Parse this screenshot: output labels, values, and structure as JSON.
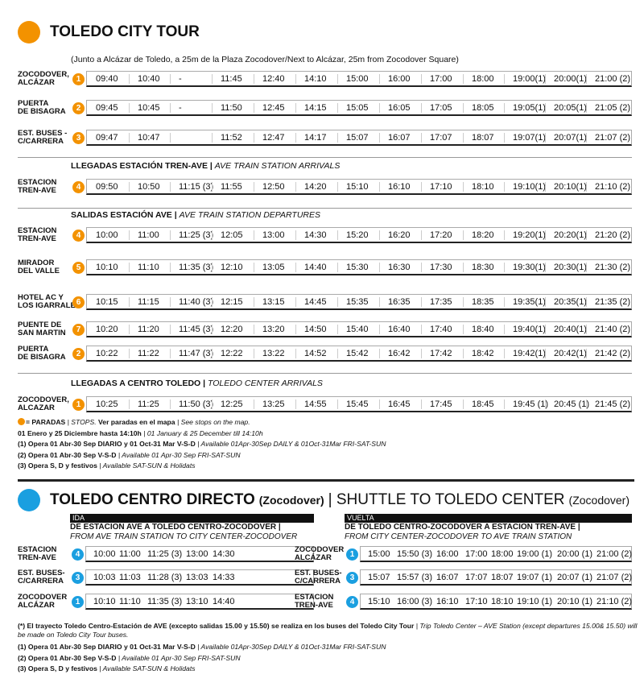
{
  "tour": {
    "title": "TOLEDO CITY TOUR",
    "subtitle": "(Junto a Alcázar de Toledo, a 25m de la Plaza Zocodover/Next to Alcázar, 25m from Zocodover Square)",
    "groups": [
      {
        "rows": [
          {
            "stop": [
              "ZOCODOVER,",
              "ALCÁZAR"
            ],
            "num": 1,
            "times": [
              "09:40",
              "10:40",
              "-",
              "11:45",
              "12:40",
              "14:10",
              "15:00",
              "16:00",
              "17:00",
              "18:00",
              "19:00(1)",
              "20:00(1)",
              "21:00 (2)"
            ]
          },
          {
            "stop": [
              "PUERTA",
              "DE BISAGRA"
            ],
            "num": 2,
            "times": [
              "09:45",
              "10:45",
              "-",
              "11:50",
              "12:45",
              "14:15",
              "15:05",
              "16:05",
              "17:05",
              "18:05",
              "19:05(1)",
              "20:05(1)",
              "21:05 (2)"
            ]
          },
          {
            "stop": [
              "EST. BUSES -",
              "C/CARRERA"
            ],
            "num": 3,
            "times": [
              "09:47",
              "10:47",
              null,
              "11:52",
              "12:47",
              "14:17",
              "15:07",
              "16:07",
              "17:07",
              "18:07",
              "19:07(1)",
              "20:07(1)",
              "21:07 (2)"
            ]
          }
        ]
      },
      {
        "heading": {
          "bold": "LLEGADAS ESTACIÓN TREN-AVE |",
          "italic": "AVE TRAIN STATION ARRIVALS"
        },
        "rows": [
          {
            "stop": [
              "ESTACION",
              "TREN-AVE"
            ],
            "num": 4,
            "times": [
              "09:50",
              "10:50",
              "11:15 (3)",
              "11:55",
              "12:50",
              "14:20",
              "15:10",
              "16:10",
              "17:10",
              "18:10",
              "19:10(1)",
              "20:10(1)",
              "21:10 (2)"
            ]
          }
        ]
      },
      {
        "heading": {
          "bold": "SALIDAS ESTACIÓN AVE |",
          "italic": "AVE TRAIN STATION DEPARTURES"
        },
        "rows": [
          {
            "stop": [
              "ESTACION",
              "TREN-AVE"
            ],
            "num": 4,
            "times": [
              "10:00",
              "11:00",
              "11:25 (3)",
              "12:05",
              "13:00",
              "14:30",
              "15:20",
              "16:20",
              "17:20",
              "18:20",
              "19:20(1)",
              "20:20(1)",
              "21:20 (2)"
            ]
          },
          {
            "stop": [
              "MIRADOR",
              "DEL VALLE"
            ],
            "num": 5,
            "times": [
              "10:10",
              "11:10",
              "11:35 (3)",
              "12:10",
              "13:05",
              "14:40",
              "15:30",
              "16:30",
              "17:30",
              "18:30",
              "19:30(1)",
              "20:30(1)",
              "21:30 (2)"
            ]
          },
          {
            "stop": [
              "HOTEL AC Y",
              "LOS IGARRALES"
            ],
            "num": 6,
            "times": [
              "10:15",
              "11:15",
              "11:40 (3)",
              "12:15",
              "13:15",
              "14:45",
              "15:35",
              "16:35",
              "17:35",
              "18:35",
              "19:35(1)",
              "20:35(1)",
              "21:35 (2)"
            ]
          },
          {
            "stop": [
              "PUENTE DE",
              "SAN MARTIN"
            ],
            "num": 7,
            "times": [
              "10:20",
              "11:20",
              "11:45 (3)",
              "12:20",
              "13:20",
              "14:50",
              "15:40",
              "16:40",
              "17:40",
              "18:40",
              "19:40(1)",
              "20:40(1)",
              "21:40 (2)"
            ]
          },
          {
            "stop": [
              "PUERTA",
              "DE BISAGRA"
            ],
            "num": 2,
            "times": [
              "10:22",
              "11:22",
              "11:47 (3)",
              "12:22",
              "13:22",
              "14:52",
              "15:42",
              "16:42",
              "17:42",
              "18:42",
              "19:42(1)",
              "20:42(1)",
              "21:42 (2)"
            ]
          }
        ]
      },
      {
        "heading": {
          "bold": "LLEGADAS A CENTRO TOLEDO |",
          "italic": "TOLEDO CENTER ARRIVALS"
        },
        "rows": [
          {
            "stop": [
              "ZOCODOVER,",
              "ALCAZAR"
            ],
            "num": 1,
            "times": [
              "10:25",
              "11:25",
              "11:50 (3)",
              "12:25",
              "13:25",
              "14:55",
              "15:45",
              "16:45",
              "17:45",
              "18:45",
              "19:45 (1)",
              "20:45 (1)",
              "21:45 (2)"
            ]
          }
        ]
      }
    ],
    "notes": [
      [
        {
          "text": "= PARADAS",
          "bold": true
        },
        {
          "text": "| STOPS."
        },
        {
          "text": "Ver paradas  en el mapa",
          "bold": true
        },
        {
          "text": "| See stops  on the map."
        }
      ],
      [
        {
          "text": "01 Enero y 25 Diciembre hasta 14:10h",
          "bold": true
        },
        {
          "text": "| 01 January & 25 December till 14:10h"
        }
      ],
      [
        {
          "text": "(1)  Opera  01 Abr-30 Sep DIARIO y 01 Oct-31 Mar V-S-D",
          "bold": true
        },
        {
          "text": "| Available  01Apr-30Sep DAILY & 01Oct-31Mar FRI-SAT-SUN"
        }
      ],
      [
        {
          "text": "(2)  Opera  01 Abr-30 Sep  V-S-D",
          "bold": true
        },
        {
          "text": "| Available  01 Apr-30 Sep FRI-SAT-SUN"
        }
      ],
      [
        {
          "text": "(3)  Opera  S, D y festivos",
          "bold": true
        },
        {
          "text": "| Available  SAT-SUN & Holidats"
        }
      ]
    ]
  },
  "shuttle": {
    "title": [
      {
        "text": "TOLEDO CENTRO DIRECTO",
        "bold": true
      },
      {
        "text": "(Zocodover)",
        "bold": true,
        "small": true
      },
      {
        "text": "| SHUTTLE TO TOLEDO CENTER"
      },
      {
        "text": "(Zocodover)",
        "small": true
      }
    ],
    "tables": [
      {
        "label": "IDA",
        "heading": "DE ESTACION AVE A TOLEDO CENTRO-ZOCODOVER |",
        "subheading": "FROM AVE TRAIN STATION TO CITY CENTER-ZOCODOVER",
        "rows": [
          {
            "stop": [
              "ESTACION",
              "TREN-AVE"
            ],
            "num": 4,
            "times": [
              "10:00",
              "11:00",
              "11:25 (3)",
              "13:00",
              "14:30"
            ]
          },
          {
            "stop": [
              "EST. BUSES-",
              "C/CARRERA"
            ],
            "num": 3,
            "times": [
              "10:03",
              "11:03",
              "11:28 (3)",
              "13:03",
              "14:33"
            ]
          },
          {
            "stop": [
              "ZOCODOVER",
              "ALCÁZAR"
            ],
            "num": 1,
            "times": [
              "10:10",
              "11:10",
              "11:35 (3)",
              "13:10",
              "14:40"
            ]
          }
        ]
      },
      {
        "label": "VUELTA",
        "heading": "DE TOLEDO CENTRO-ZOCODOVER A ESTACION TREN-AVE |",
        "subheading": "FROM CITY CENTER-ZOCODOVER TO AVE TRAIN STATION",
        "rows": [
          {
            "stop": [
              "ZOCODOVER",
              "ALCÁZAR"
            ],
            "num": 1,
            "times": [
              "15:00",
              "15:50 (3)",
              "16:00",
              "17:00",
              "18:00",
              "19:00 (1)",
              "20:00 (1)",
              "21:00 (2)"
            ]
          },
          {
            "stop": [
              "EST. BUSES-",
              "C/CARRERA"
            ],
            "num": 3,
            "times": [
              "15:07",
              "15:57 (3)",
              "16:07",
              "17:07",
              "18:07",
              "19:07 (1)",
              "20:07 (1)",
              "21:07 (2)"
            ]
          },
          {
            "stop": [
              "ESTACION",
              "TREN-AVE"
            ],
            "num": 4,
            "times": [
              "15:10",
              "16:00 (3)",
              "16:10",
              "17:10",
              "18:10",
              "19:10 (1)",
              "20:10 (1)",
              "21:10 (2)"
            ]
          }
        ]
      }
    ],
    "notes": [
      [
        {
          "text": "(*) El trayecto Toledo Centro-Estación de AVE (excepto salidas  15.00 y 15.50) se realiza en los buses del Toledo City Tour",
          "bold": true
        },
        {
          "text": "| Trip Toledo  Center – AVE Station (except departures 15.00& 15.50)  will be made on Toledo City Tour buses."
        }
      ],
      [
        {
          "text": "(1)  Opera  01 Abr-30 Sep DIARIO y 01 Oct-31 Mar V-S-D",
          "bold": true
        },
        {
          "text": "| Available  01Apr-30Sep DAILY & 01Oct-31Mar FRI-SAT-SUN"
        }
      ],
      [
        {
          "text": "(2)  Opera  01 Abr-30 Sep  V-S-D",
          "bold": true
        },
        {
          "text": "| Available  01 Apr-30 Sep FRI-SAT-SUN"
        }
      ],
      [
        {
          "text": "(3)  Opera  S, D y festivos",
          "bold": true
        },
        {
          "text": "| Available  SAT-SUN & Holidats"
        }
      ]
    ]
  }
}
